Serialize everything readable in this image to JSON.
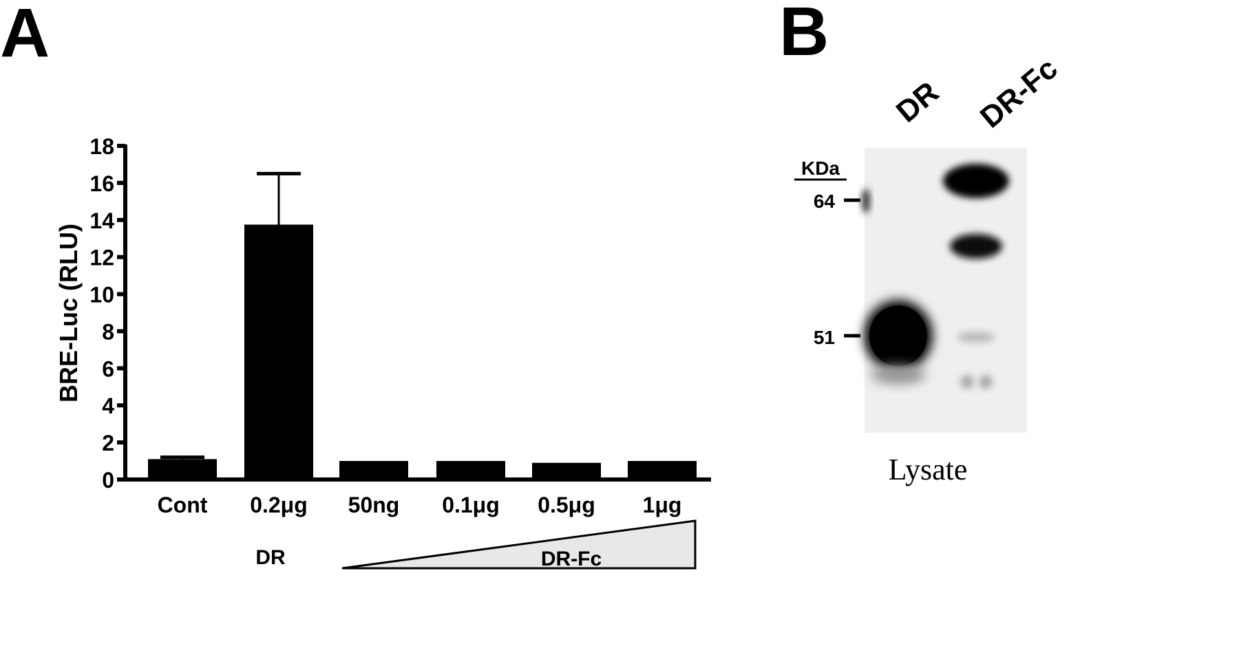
{
  "panel_a_label": "A",
  "panel_b_label": "B",
  "chart_data": {
    "type": "bar",
    "ylabel": "BRE-Luc (RLU)",
    "xlabel": "",
    "ylim": [
      0,
      18
    ],
    "yticks": [
      "0",
      "2",
      "4",
      "6",
      "8",
      "10",
      "12",
      "14",
      "16",
      "18"
    ],
    "categories": [
      "Cont",
      "0.2μg",
      "50ng",
      "0.1μg",
      "0.5μg",
      "1μg"
    ],
    "values": [
      1.1,
      13.75,
      1.0,
      1.0,
      0.9,
      1.0
    ],
    "error_upper": [
      1.2,
      16.5,
      null,
      null,
      null,
      null
    ],
    "bar_color": "#000000",
    "grid": false,
    "group_labels": {
      "dr": "DR",
      "dr_fc": "DR-Fc"
    },
    "dose_gradient_fill": "#e8e8e8"
  },
  "blot": {
    "lane_labels": [
      "DR",
      "DR-Fc"
    ],
    "unit_label": "KDa",
    "markers": [
      "64",
      "51"
    ],
    "caption": "Lysate"
  }
}
